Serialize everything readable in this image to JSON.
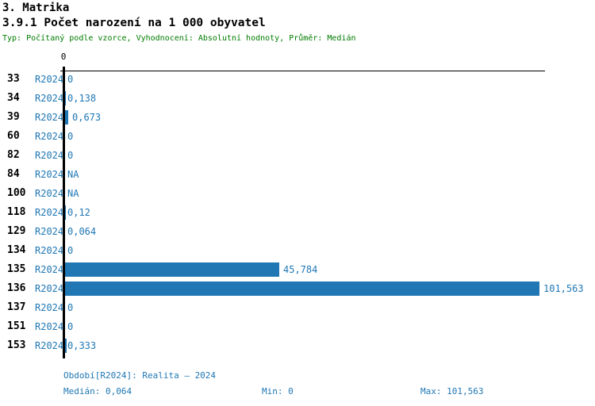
{
  "header": {
    "title": "3. Matrika",
    "subtitle": "3.9.1 Počet narození na 1 000 obyvatel",
    "meta": "Typ: Počítaný podle vzorce, Vyhodnocení: Absolutní hodnoty, Průměr: Medián"
  },
  "colors": {
    "bar": "#2077B4",
    "text_blue": "#1F77B4",
    "meta_green": "#007B00",
    "axis": "#000000",
    "title_text": "#000000",
    "background": "#FFFFFF"
  },
  "chart_data": {
    "type": "bar",
    "orientation": "horizontal",
    "title": "3.9.1 Počet narození na 1 000 obyvatel",
    "categories": [
      "33",
      "34",
      "39",
      "60",
      "82",
      "84",
      "100",
      "118",
      "129",
      "134",
      "135",
      "136",
      "137",
      "151",
      "153"
    ],
    "series": [
      {
        "name": "R2024",
        "values": [
          0,
          0.138,
          0.673,
          0,
          0,
          null,
          null,
          0.12,
          0.064,
          0,
          45.784,
          101.563,
          0,
          0,
          0.333
        ]
      }
    ],
    "value_labels": [
      "0",
      "0,138",
      "0,673",
      "0",
      "0",
      "NA",
      "NA",
      "0,12",
      "0,064",
      "0",
      "45,784",
      "101,563",
      "0",
      "0",
      "0,333"
    ],
    "xlim": [
      0,
      101.563
    ],
    "axis_zero_label": "0",
    "grid": false,
    "legend": false
  },
  "footer": {
    "period": "Období[R2024]: Realita – 2024",
    "median": "Medián: 0,064",
    "min": "Min: 0",
    "max": "Max: 101,563"
  }
}
